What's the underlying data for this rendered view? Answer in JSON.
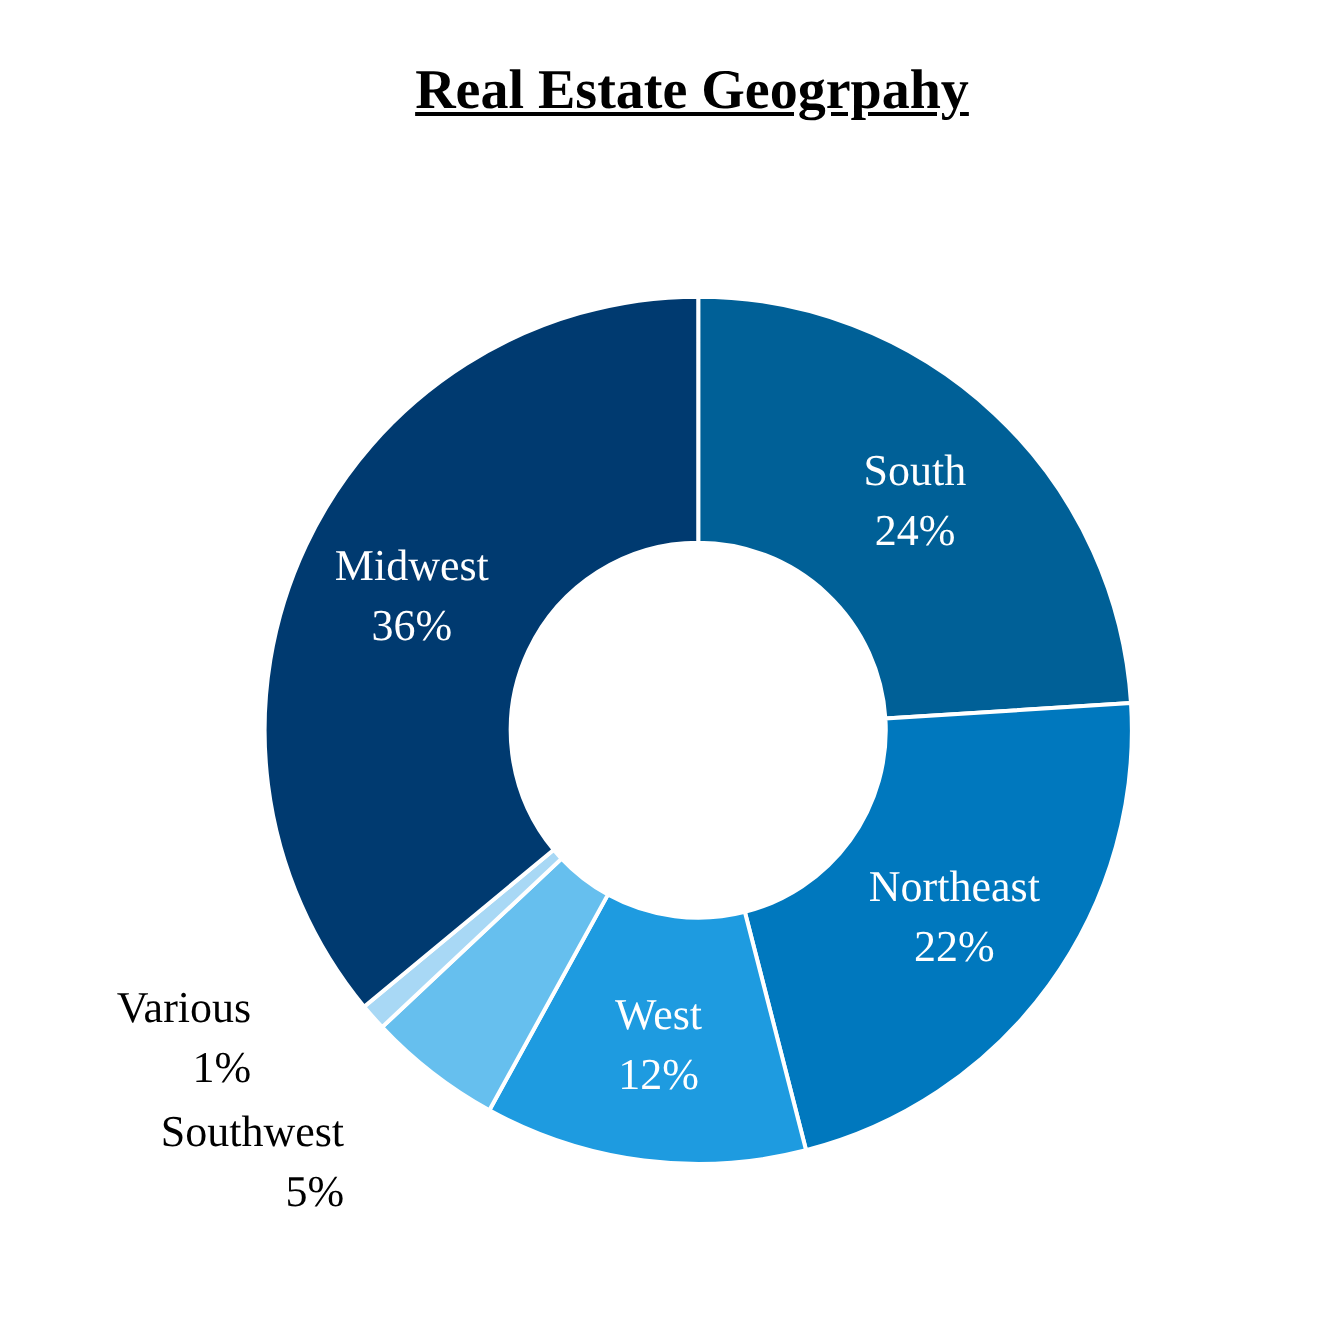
{
  "chart_data": {
    "type": "donut",
    "title": "Real Estate Geogrpahy",
    "categories": [
      "South",
      "Northeast",
      "West",
      "Southwest",
      "Various",
      "Midwest"
    ],
    "values": [
      24,
      22,
      12,
      5,
      1,
      36
    ],
    "colors": [
      "#006097",
      "#0078be",
      "#1e9be0",
      "#66bfee",
      "#a8d8f5",
      "#003a70"
    ],
    "value_labels": [
      "24%",
      "22%",
      "12%",
      "5%",
      "1%",
      "36%"
    ],
    "legend": false
  }
}
